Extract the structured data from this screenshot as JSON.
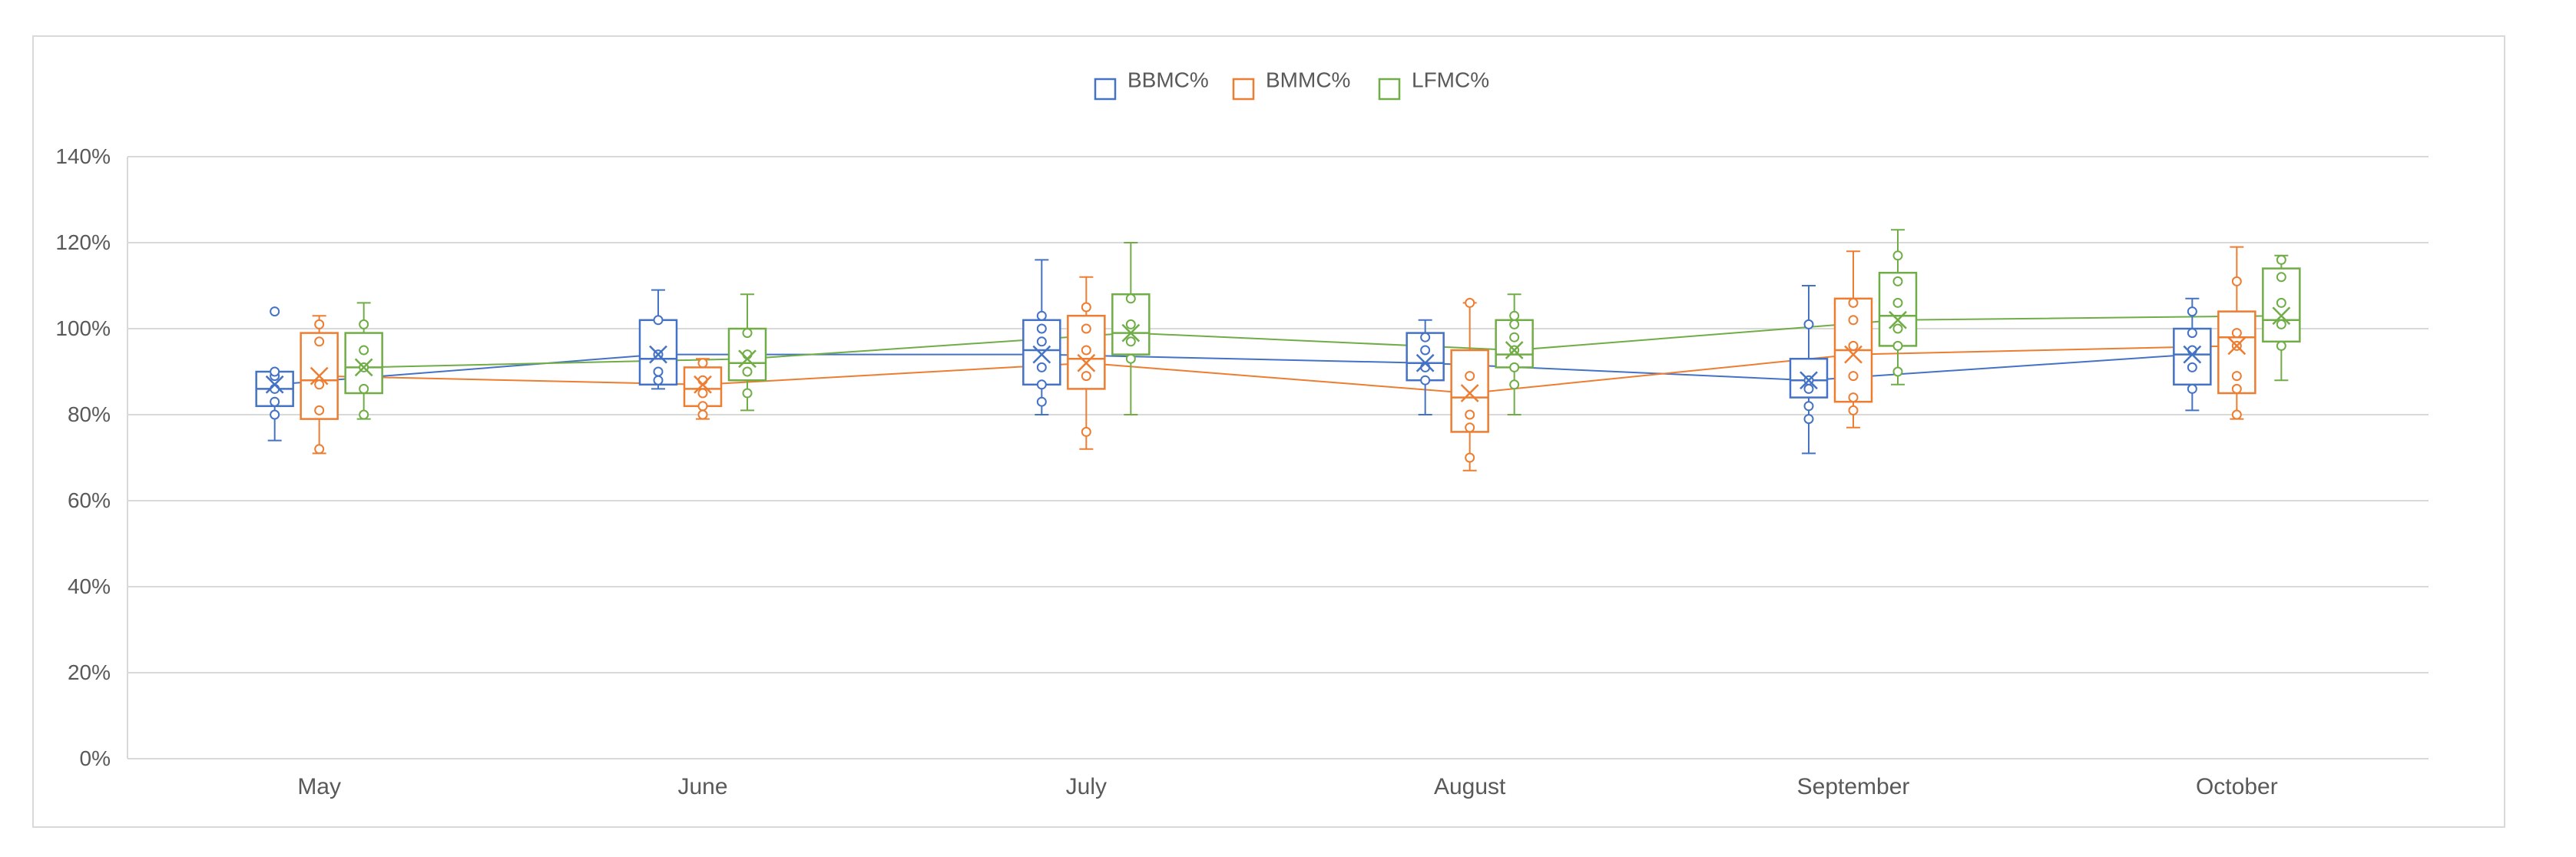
{
  "chart_data": {
    "type": "box",
    "title": "",
    "xlabel": "",
    "ylabel": "",
    "categories": [
      "May",
      "June",
      "July",
      "August",
      "September",
      "October"
    ],
    "y_ticks": [
      "0%",
      "20%",
      "40%",
      "60%",
      "80%",
      "100%",
      "120%",
      "140%"
    ],
    "ylim": [
      0,
      140
    ],
    "grid": true,
    "legend_position": "top-center",
    "series": [
      {
        "name": "BBMC%",
        "color": "#4472c4",
        "boxes": [
          {
            "min": 74,
            "q1": 82,
            "median": 86,
            "q3": 90,
            "max": 90,
            "mean": 87,
            "points": [
              80,
              83,
              86,
              89,
              90
            ],
            "outliers": [
              104
            ]
          },
          {
            "min": 86,
            "q1": 87,
            "median": 93,
            "q3": 102,
            "max": 109,
            "mean": 94,
            "points": [
              88,
              90,
              94,
              102
            ],
            "outliers": []
          },
          {
            "min": 80,
            "q1": 87,
            "median": 95,
            "q3": 102,
            "max": 116,
            "mean": 94,
            "points": [
              83,
              87,
              91,
              97,
              100,
              103
            ],
            "outliers": []
          },
          {
            "min": 80,
            "q1": 88,
            "median": 92,
            "q3": 99,
            "max": 102,
            "mean": 92,
            "points": [
              88,
              91,
              95,
              98
            ],
            "outliers": []
          },
          {
            "min": 71,
            "q1": 84,
            "median": 88,
            "q3": 93,
            "max": 110,
            "mean": 88,
            "points": [
              79,
              82,
              86,
              88,
              101
            ],
            "outliers": []
          },
          {
            "min": 81,
            "q1": 87,
            "median": 94,
            "q3": 100,
            "max": 107,
            "mean": 94,
            "points": [
              86,
              91,
              95,
              99,
              104
            ],
            "outliers": []
          }
        ]
      },
      {
        "name": "BMMC%",
        "color": "#ed7d31",
        "boxes": [
          {
            "min": 71,
            "q1": 79,
            "median": 88,
            "q3": 99,
            "max": 103,
            "mean": 89,
            "points": [
              72,
              81,
              87,
              97,
              101
            ],
            "outliers": []
          },
          {
            "min": 79,
            "q1": 82,
            "median": 86,
            "q3": 91,
            "max": 93,
            "mean": 87,
            "points": [
              80,
              82,
              85,
              88,
              92
            ],
            "outliers": []
          },
          {
            "min": 72,
            "q1": 86,
            "median": 93,
            "q3": 103,
            "max": 112,
            "mean": 92,
            "points": [
              76,
              89,
              95,
              100,
              105
            ],
            "outliers": []
          },
          {
            "min": 67,
            "q1": 76,
            "median": 84,
            "q3": 95,
            "max": 106,
            "mean": 85,
            "points": [
              70,
              77,
              80,
              89,
              106
            ],
            "outliers": []
          },
          {
            "min": 77,
            "q1": 83,
            "median": 95,
            "q3": 107,
            "max": 118,
            "mean": 94,
            "points": [
              81,
              84,
              89,
              96,
              102,
              106
            ],
            "outliers": []
          },
          {
            "min": 79,
            "q1": 85,
            "median": 98,
            "q3": 104,
            "max": 119,
            "mean": 96,
            "points": [
              80,
              86,
              89,
              96,
              99,
              111
            ],
            "outliers": []
          }
        ]
      },
      {
        "name": "LFMC%",
        "color": "#70ad47",
        "boxes": [
          {
            "min": 79,
            "q1": 85,
            "median": 91,
            "q3": 99,
            "max": 106,
            "mean": 91,
            "points": [
              80,
              86,
              91,
              95,
              101
            ],
            "outliers": []
          },
          {
            "min": 81,
            "q1": 88,
            "median": 92,
            "q3": 100,
            "max": 108,
            "mean": 93,
            "points": [
              85,
              90,
              94,
              99
            ],
            "outliers": []
          },
          {
            "min": 80,
            "q1": 94,
            "median": 99,
            "q3": 108,
            "max": 120,
            "mean": 99,
            "points": [
              93,
              97,
              101,
              107
            ],
            "outliers": []
          },
          {
            "min": 80,
            "q1": 91,
            "median": 94,
            "q3": 102,
            "max": 108,
            "mean": 95,
            "points": [
              87,
              91,
              95,
              98,
              101,
              103
            ],
            "outliers": []
          },
          {
            "min": 87,
            "q1": 96,
            "median": 103,
            "q3": 113,
            "max": 123,
            "mean": 102,
            "points": [
              90,
              96,
              100,
              106,
              111,
              117
            ],
            "outliers": []
          },
          {
            "min": 88,
            "q1": 97,
            "median": 102,
            "q3": 114,
            "max": 117,
            "mean": 103,
            "points": [
              96,
              101,
              106,
              112,
              116
            ],
            "outliers": []
          }
        ]
      }
    ]
  }
}
